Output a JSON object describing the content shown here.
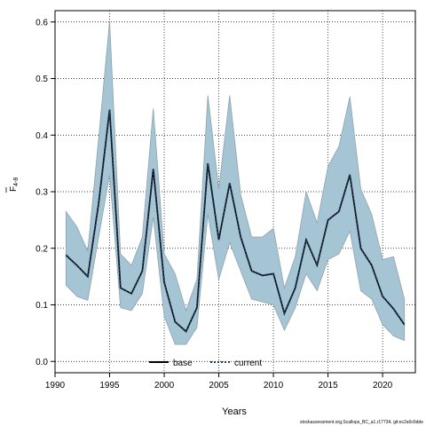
{
  "chart_data": {
    "type": "line",
    "title": "",
    "xlabel": "Years",
    "ylabel": "F",
    "ylabel_subscript": "4-8",
    "xlim": [
      1990,
      2023
    ],
    "ylim": [
      -0.02,
      0.62
    ],
    "x_ticks": [
      1990,
      1995,
      2000,
      2005,
      2010,
      2015,
      2020
    ],
    "y_ticks": [
      0.0,
      0.1,
      0.2,
      0.3,
      0.4,
      0.5,
      0.6
    ],
    "x_tick_labels": [
      "1990",
      "1995",
      "2000",
      "2005",
      "2010",
      "2015",
      "2020"
    ],
    "y_tick_labels": [
      "0.0",
      "0.1",
      "0.2",
      "0.3",
      "0.4",
      "0.5",
      "0.6"
    ],
    "grid": true,
    "legend_position": "bottom-center",
    "colors": {
      "band_fill": "#a5c4d4",
      "band_stroke": "#8fa3ae",
      "line": "#000000",
      "current": "#1f3f5a"
    },
    "x": [
      1991,
      1992,
      1993,
      1994,
      1995,
      1996,
      1997,
      1998,
      1999,
      2000,
      2001,
      2002,
      2003,
      2004,
      2005,
      2006,
      2007,
      2008,
      2009,
      2010,
      2011,
      2012,
      2013,
      2014,
      2015,
      2016,
      2017,
      2018,
      2019,
      2020,
      2021,
      2022
    ],
    "series": [
      {
        "name": "base",
        "style": "solid",
        "values": [
          0.188,
          0.17,
          0.15,
          0.28,
          0.445,
          0.13,
          0.12,
          0.16,
          0.34,
          0.14,
          0.07,
          0.053,
          0.095,
          0.35,
          0.215,
          0.315,
          0.22,
          0.16,
          0.152,
          0.155,
          0.085,
          0.13,
          0.215,
          0.17,
          0.25,
          0.265,
          0.33,
          0.2,
          0.17,
          0.115,
          0.093,
          0.065
        ]
      },
      {
        "name": "current",
        "style": "dashed",
        "values": [
          0.188,
          0.17,
          0.15,
          0.28,
          0.445,
          0.13,
          0.12,
          0.16,
          0.34,
          0.14,
          0.07,
          0.053,
          0.095,
          0.35,
          0.215,
          0.315,
          0.22,
          0.16,
          0.152,
          0.155,
          0.085,
          0.13,
          0.215,
          0.17,
          0.25,
          0.265,
          0.33,
          0.2,
          0.17,
          0.115,
          0.093,
          0.065
        ]
      }
    ],
    "band": {
      "lower": [
        0.135,
        0.115,
        0.108,
        0.22,
        0.33,
        0.095,
        0.09,
        0.12,
        0.255,
        0.08,
        0.03,
        0.03,
        0.06,
        0.26,
        0.145,
        0.21,
        0.16,
        0.11,
        0.105,
        0.1,
        0.055,
        0.095,
        0.155,
        0.125,
        0.18,
        0.19,
        0.23,
        0.125,
        0.11,
        0.065,
        0.045,
        0.037
      ],
      "upper": [
        0.265,
        0.238,
        0.195,
        0.395,
        0.602,
        0.19,
        0.17,
        0.22,
        0.447,
        0.19,
        0.155,
        0.09,
        0.145,
        0.47,
        0.305,
        0.47,
        0.295,
        0.22,
        0.22,
        0.235,
        0.13,
        0.185,
        0.3,
        0.245,
        0.345,
        0.38,
        0.468,
        0.305,
        0.26,
        0.18,
        0.185,
        0.11
      ]
    }
  },
  "footer": {
    "source_text": "stockassessment.org,Scallops_BC_a1,r17734, git:ec2a0c6dde"
  }
}
